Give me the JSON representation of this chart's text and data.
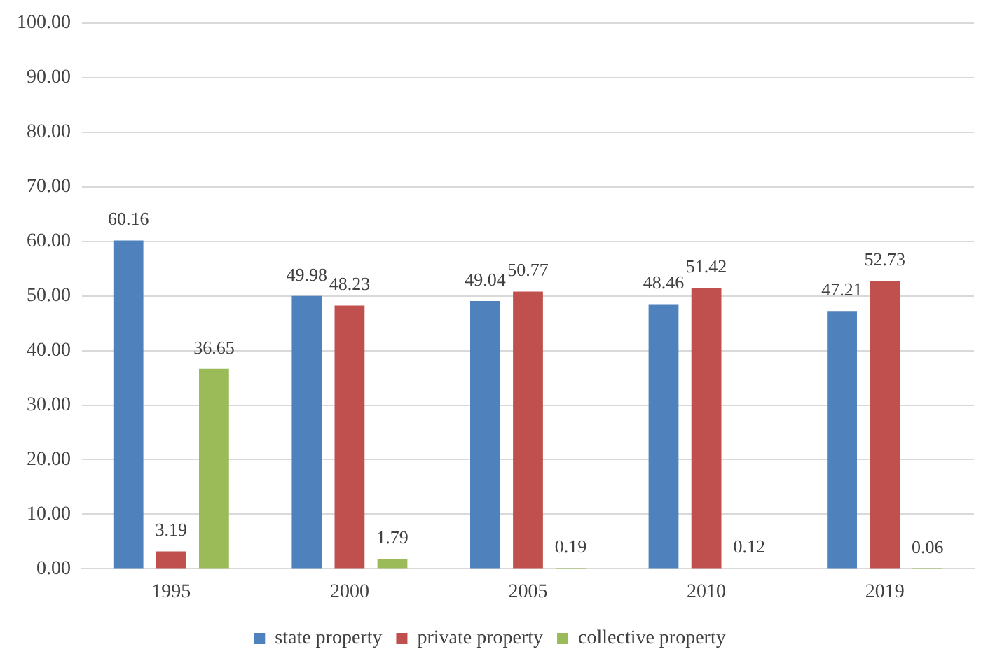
{
  "chart_data": {
    "type": "bar",
    "categories": [
      "1995",
      "2000",
      "2005",
      "2010",
      "2019"
    ],
    "series": [
      {
        "name": "state property",
        "color": "#4f81bd",
        "values": [
          60.16,
          49.98,
          49.04,
          48.46,
          47.21
        ]
      },
      {
        "name": "private property",
        "color": "#c0504d",
        "values": [
          3.19,
          48.23,
          50.77,
          51.42,
          52.73
        ]
      },
      {
        "name": "collective property",
        "color": "#9bbb59",
        "values": [
          36.65,
          1.79,
          0.19,
          0.12,
          0.06
        ]
      }
    ],
    "ylim": [
      0,
      100
    ],
    "yticks": [
      {
        "value": 0,
        "label": "0.00"
      },
      {
        "value": 10,
        "label": "10.00"
      },
      {
        "value": 20,
        "label": "20.00"
      },
      {
        "value": 30,
        "label": "30.00"
      },
      {
        "value": 40,
        "label": "40.00"
      },
      {
        "value": 50,
        "label": "50.00"
      },
      {
        "value": 60,
        "label": "60.00"
      },
      {
        "value": 70,
        "label": "70.00"
      },
      {
        "value": 80,
        "label": "80.00"
      },
      {
        "value": 90,
        "label": "90.00"
      },
      {
        "value": 100,
        "label": "100.00"
      }
    ],
    "grid": "y",
    "legend": "bottom",
    "data_labels": true
  }
}
